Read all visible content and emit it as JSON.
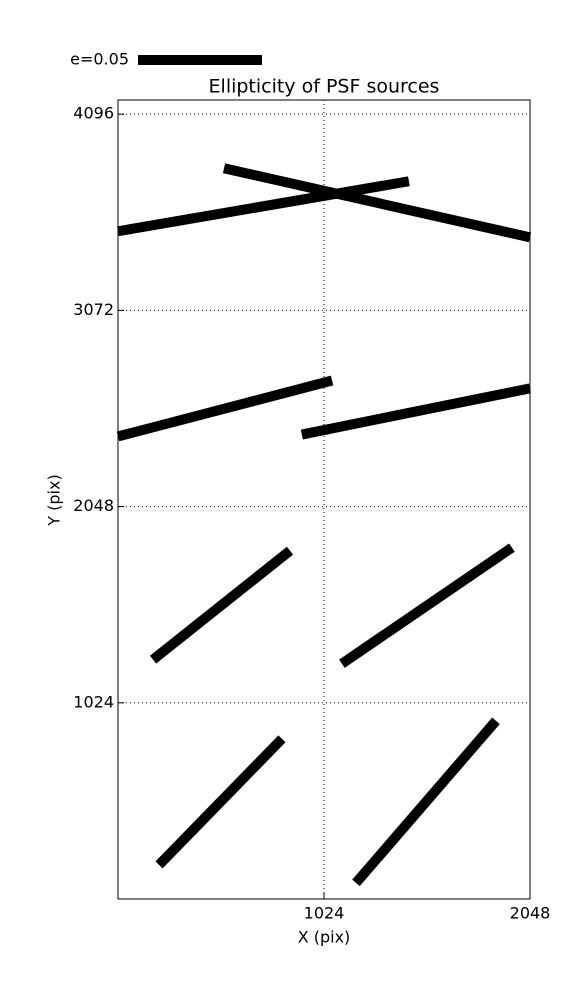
{
  "chart_data": {
    "type": "whisker",
    "title": "Ellipticity of PSF sources",
    "x_label": "X (pix)",
    "y_label": "Y (pix)",
    "key_label": "e=0.05",
    "color": "#000000",
    "grid": true,
    "xlim": [
      0,
      2048
    ],
    "ylim": [
      0,
      4170
    ],
    "xticks": [
      1024,
      2048
    ],
    "yticks": [
      1024,
      2048,
      3072,
      4096
    ],
    "segments": [
      {
        "x": [
          0,
          1446
        ],
        "y": [
          3485,
          3746
        ]
      },
      {
        "x": [
          527,
          2048
        ],
        "y": [
          3814,
          3453
        ]
      },
      {
        "x": [
          0,
          1064
        ],
        "y": [
          2414,
          2706
        ]
      },
      {
        "x": [
          914,
          2048
        ],
        "y": [
          2424,
          2665
        ]
      },
      {
        "x": [
          174,
          855
        ],
        "y": [
          1249,
          1818
        ]
      },
      {
        "x": [
          1113,
          1958
        ],
        "y": [
          1228,
          1834
        ]
      },
      {
        "x": [
          204,
          815
        ],
        "y": [
          178,
          836
        ]
      },
      {
        "x": [
          1183,
          1879
        ],
        "y": [
          84,
          930
        ]
      }
    ]
  }
}
